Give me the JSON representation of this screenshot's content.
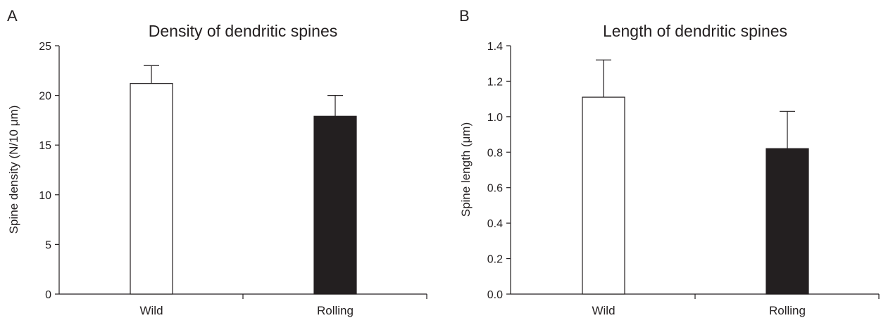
{
  "chart_data": [
    {
      "type": "bar",
      "panel_label": "A",
      "title": "Density of dendritic spines",
      "xlabel": "",
      "ylabel": "Spine density (N/10 μm)",
      "categories": [
        "Wild",
        "Rolling"
      ],
      "values": [
        21.2,
        17.9
      ],
      "error_bars": [
        1.8,
        2.1
      ],
      "bar_fills": [
        "#ffffff",
        "#231f20"
      ],
      "ylim": [
        0,
        25
      ],
      "yticks": [
        0,
        5,
        10,
        15,
        20,
        25
      ],
      "ytick_labels": [
        "0",
        "5",
        "10",
        "15",
        "20",
        "25"
      ],
      "grid": false
    },
    {
      "type": "bar",
      "panel_label": "B",
      "title": "Length of dendritic spines",
      "xlabel": "",
      "ylabel": "Spine length (μm)",
      "categories": [
        "Wild",
        "Rolling"
      ],
      "values": [
        1.11,
        0.82
      ],
      "error_bars": [
        0.21,
        0.21
      ],
      "bar_fills": [
        "#ffffff",
        "#231f20"
      ],
      "ylim": [
        0,
        1.4
      ],
      "yticks": [
        0,
        0.2,
        0.4,
        0.6,
        0.8,
        1.0,
        1.2,
        1.4
      ],
      "ytick_labels": [
        "0.0",
        "0.2",
        "0.4",
        "0.6",
        "0.8",
        "1.0",
        "1.2",
        "1.4"
      ],
      "grid": false
    }
  ]
}
